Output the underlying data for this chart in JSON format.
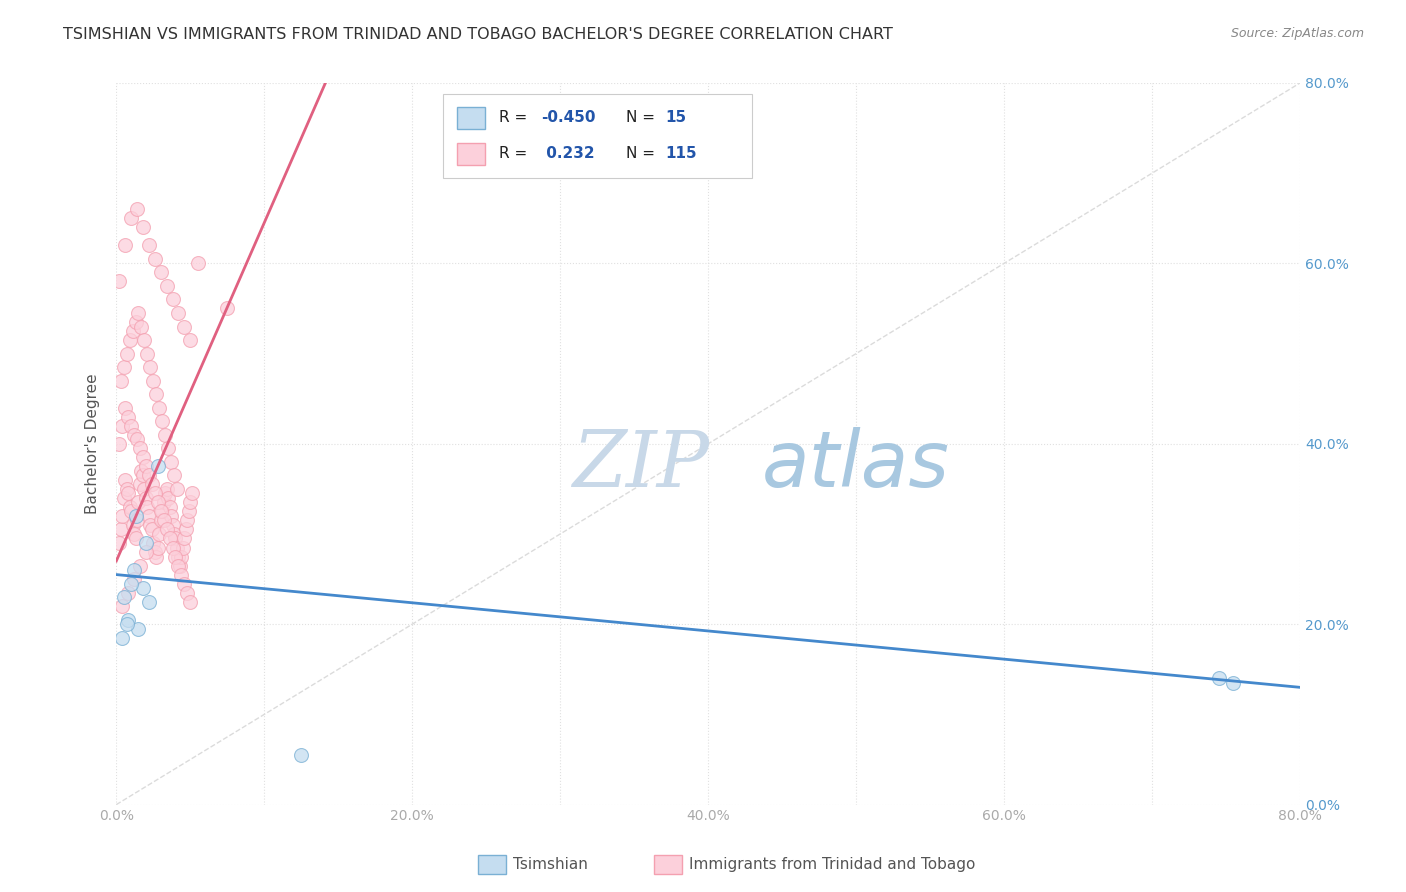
{
  "title": "TSIMSHIAN VS IMMIGRANTS FROM TRINIDAD AND TOBAGO BACHELOR'S DEGREE CORRELATION CHART",
  "source": "Source: ZipAtlas.com",
  "ylabel": "Bachelor's Degree",
  "x_tick_labels": [
    "0.0%",
    "",
    "20.0%",
    "",
    "40.0%",
    "",
    "60.0%",
    "",
    "80.0%"
  ],
  "x_tick_values": [
    0,
    10,
    20,
    30,
    40,
    50,
    60,
    70,
    80
  ],
  "y_tick_labels": [
    "0.0%",
    "20.0%",
    "40.0%",
    "60.0%",
    "80.0%"
  ],
  "y_tick_values": [
    0,
    20,
    40,
    60,
    80
  ],
  "xlim": [
    0,
    80
  ],
  "ylim": [
    0,
    80
  ],
  "background_color": "#ffffff",
  "grid_color": "#dddddd",
  "legend_label1": "Tsimshian",
  "legend_label2": "Immigrants from Trinidad and Tobago",
  "blue_color": "#7ab0d4",
  "pink_color": "#f4a0b0",
  "blue_fill": "#c5ddf0",
  "pink_fill": "#fcd0db",
  "ref_line_color": "#cccccc",
  "blue_trend_color": "#4488cc",
  "pink_trend_color": "#e06080",
  "blue_trend_x0": 0,
  "blue_trend_y0": 25.5,
  "blue_trend_x1": 80,
  "blue_trend_y1": 13.0,
  "pink_trend_x0": 0,
  "pink_trend_y0": 27.0,
  "pink_trend_x1": 8,
  "pink_trend_y1": 57.0,
  "tsimshian_x": [
    1.2,
    1.8,
    2.2,
    0.8,
    1.5,
    0.4,
    2.8,
    2.0,
    1.0,
    0.7,
    74.5,
    75.5,
    12.5,
    1.3,
    0.5
  ],
  "tsimshian_y": [
    26.0,
    24.0,
    22.5,
    20.5,
    19.5,
    18.5,
    37.5,
    29.0,
    24.5,
    20.0,
    14.0,
    13.5,
    5.5,
    32.0,
    23.0
  ],
  "trinidad_x": [
    0.2,
    0.3,
    0.4,
    0.5,
    0.6,
    0.7,
    0.8,
    0.9,
    1.0,
    1.1,
    1.2,
    1.3,
    1.4,
    1.5,
    1.6,
    1.7,
    1.8,
    1.9,
    2.0,
    2.1,
    2.2,
    2.3,
    2.4,
    2.5,
    2.6,
    2.7,
    2.8,
    2.9,
    3.0,
    3.1,
    3.2,
    3.3,
    3.4,
    3.5,
    3.6,
    3.7,
    3.8,
    3.9,
    4.0,
    4.1,
    4.2,
    4.3,
    4.4,
    4.5,
    4.6,
    4.7,
    4.8,
    4.9,
    5.0,
    5.1,
    0.2,
    0.4,
    0.6,
    0.8,
    1.0,
    1.2,
    1.4,
    1.6,
    1.8,
    2.0,
    2.2,
    2.4,
    2.6,
    2.8,
    3.0,
    3.2,
    3.4,
    3.6,
    3.8,
    4.0,
    4.2,
    4.4,
    4.6,
    4.8,
    5.0,
    0.3,
    0.5,
    0.7,
    0.9,
    1.1,
    1.3,
    1.5,
    1.7,
    1.9,
    2.1,
    2.3,
    2.5,
    2.7,
    2.9,
    3.1,
    3.3,
    3.5,
    3.7,
    3.9,
    4.1,
    0.2,
    0.6,
    1.0,
    1.4,
    1.8,
    2.2,
    2.6,
    3.0,
    3.4,
    3.8,
    4.2,
    4.6,
    5.0,
    5.5,
    7.5,
    0.4,
    0.8,
    1.2,
    1.6,
    2.0
  ],
  "trinidad_y": [
    29.0,
    30.5,
    32.0,
    34.0,
    36.0,
    35.0,
    34.5,
    33.0,
    32.5,
    31.0,
    30.0,
    29.5,
    31.5,
    33.5,
    35.5,
    37.0,
    36.5,
    35.0,
    34.0,
    33.0,
    32.0,
    31.0,
    30.5,
    29.0,
    28.0,
    27.5,
    28.5,
    30.0,
    31.5,
    32.5,
    33.5,
    34.5,
    35.0,
    34.0,
    33.0,
    32.0,
    31.0,
    30.0,
    29.5,
    28.5,
    27.5,
    26.5,
    27.5,
    28.5,
    29.5,
    30.5,
    31.5,
    32.5,
    33.5,
    34.5,
    40.0,
    42.0,
    44.0,
    43.0,
    42.0,
    41.0,
    40.5,
    39.5,
    38.5,
    37.5,
    36.5,
    35.5,
    34.5,
    33.5,
    32.5,
    31.5,
    30.5,
    29.5,
    28.5,
    27.5,
    26.5,
    25.5,
    24.5,
    23.5,
    22.5,
    47.0,
    48.5,
    50.0,
    51.5,
    52.5,
    53.5,
    54.5,
    53.0,
    51.5,
    50.0,
    48.5,
    47.0,
    45.5,
    44.0,
    42.5,
    41.0,
    39.5,
    38.0,
    36.5,
    35.0,
    58.0,
    62.0,
    65.0,
    66.0,
    64.0,
    62.0,
    60.5,
    59.0,
    57.5,
    56.0,
    54.5,
    53.0,
    51.5,
    60.0,
    55.0,
    22.0,
    23.5,
    25.0,
    26.5,
    28.0
  ]
}
